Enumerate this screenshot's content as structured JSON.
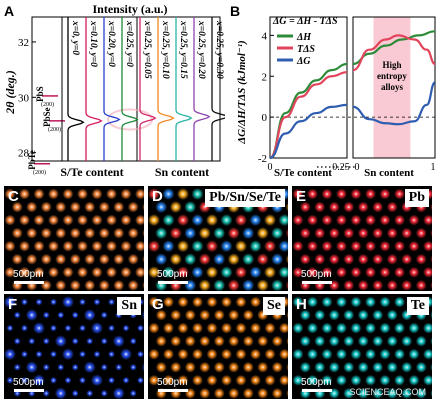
{
  "chart_data": [
    {
      "panel": "A",
      "type": "line",
      "title": "Intensity (a.u.)",
      "ylabel": "2θ (deg.)",
      "yticks": [
        "28",
        "30",
        "32"
      ],
      "ylim": [
        27.7,
        32.9
      ],
      "group_labels": [
        "S/Te content",
        "Sn content"
      ],
      "ref_labels": [
        {
          "text": "PbS",
          "y": 30.05
        },
        {
          "text": "PbSe",
          "y": 29.15
        },
        {
          "text": "PbTe",
          "y": 27.6
        }
      ],
      "ref_hkl": [
        "(200)",
        "(200)",
        "(200)"
      ],
      "series": [
        {
          "name": "x=0, y=0",
          "color": "#000000",
          "peak": 29.1
        },
        {
          "name": "x=0.10, y=0",
          "color": "#d81b60",
          "peak": 29.15
        },
        {
          "name": "x=0.20, y=0",
          "color": "#2b3fcf",
          "peak": 29.2
        },
        {
          "name": "x=0.25, y=0",
          "color": "#1d8a3a",
          "peak": 29.2
        },
        {
          "name": "x=0.25, y=0.05",
          "color": "#d4286b",
          "peak": 29.25
        },
        {
          "name": "x=0.25, y=0.10",
          "color": "#f08a24",
          "peak": 29.25
        },
        {
          "name": "x=0.25, y=0.15",
          "color": "#2ab3a6",
          "peak": 29.25
        },
        {
          "name": "x=0.25, y=0.20",
          "color": "#8e44ad",
          "peak": 29.3
        },
        {
          "name": "x=0.25, y=0.30",
          "color": "#111111",
          "peak": 29.3
        }
      ]
    },
    {
      "panel": "B",
      "type": "line",
      "ylabel": "ΔG/ΔH/TΔS (kJmol⁻¹)",
      "equation": "ΔG = ΔH - TΔS",
      "ylim": [
        -2,
        4.9
      ],
      "yticks": [
        "-2",
        "0",
        "2",
        "4"
      ],
      "xlabels": [
        "S/Te content",
        "Sn content"
      ],
      "xticks_left": [
        "0",
        "0.25"
      ],
      "xticks_right": [
        "0",
        "1"
      ],
      "annotation": "High entropy alloys",
      "highlight": [
        0.25,
        0.7
      ],
      "series": [
        {
          "name": "ΔH",
          "color": "#2e8b3a",
          "left": [
            [
              0,
              -2
            ],
            [
              0.05,
              0.2
            ],
            [
              0.1,
              1.2
            ],
            [
              0.15,
              1.8
            ],
            [
              0.2,
              2.3
            ],
            [
              0.25,
              2.6
            ]
          ],
          "right": [
            [
              0,
              2.6
            ],
            [
              0.2,
              3.1
            ],
            [
              0.4,
              3.5
            ],
            [
              0.6,
              3.8
            ],
            [
              0.8,
              4.0
            ],
            [
              1,
              4.2
            ]
          ]
        },
        {
          "name": "TΔS",
          "color": "#e2445c",
          "left": [
            [
              0,
              -2
            ],
            [
              0.05,
              0
            ],
            [
              0.1,
              1.0
            ],
            [
              0.15,
              1.6
            ],
            [
              0.2,
              2.0
            ],
            [
              0.25,
              2.2
            ]
          ],
          "right": [
            [
              0,
              2.3
            ],
            [
              0.2,
              3.3
            ],
            [
              0.4,
              3.8
            ],
            [
              0.55,
              4.0
            ],
            [
              0.75,
              3.8
            ],
            [
              0.9,
              3.3
            ],
            [
              1,
              2.6
            ]
          ]
        },
        {
          "name": "ΔG",
          "color": "#2f5db0",
          "left": [
            [
              0,
              -2
            ],
            [
              0.05,
              -0.8
            ],
            [
              0.1,
              -0.2
            ],
            [
              0.15,
              0.2
            ],
            [
              0.2,
              0.5
            ],
            [
              0.25,
              0.6
            ]
          ],
          "right": [
            [
              0,
              0.5
            ],
            [
              0.2,
              -0.1
            ],
            [
              0.4,
              -0.3
            ],
            [
              0.55,
              -0.35
            ],
            [
              0.75,
              -0.2
            ],
            [
              0.9,
              0.6
            ],
            [
              1,
              1.7
            ]
          ]
        }
      ]
    }
  ],
  "panels": {
    "A": {
      "letter": "A"
    },
    "B": {
      "letter": "B"
    },
    "C": {
      "letter": "C",
      "scale": "500pm",
      "tag": "",
      "color": "#ff8a3c"
    },
    "D": {
      "letter": "D",
      "scale": "500pm",
      "tag": "Pb/Sn/Se/Te",
      "color": "#9acd32"
    },
    "E": {
      "letter": "E",
      "scale": "500pm",
      "tag": "Pb",
      "color": "#ff2b3a"
    },
    "F": {
      "letter": "F",
      "scale": "500pm",
      "tag": "Sn",
      "color": "#2a55ff"
    },
    "G": {
      "letter": "G",
      "scale": "500pm",
      "tag": "Se",
      "color": "#ff8c1a"
    },
    "H": {
      "letter": "H",
      "scale": "500pm",
      "tag": "Te",
      "color": "#19d3d3"
    }
  },
  "watermark": "SCIENCEAQ.COM"
}
